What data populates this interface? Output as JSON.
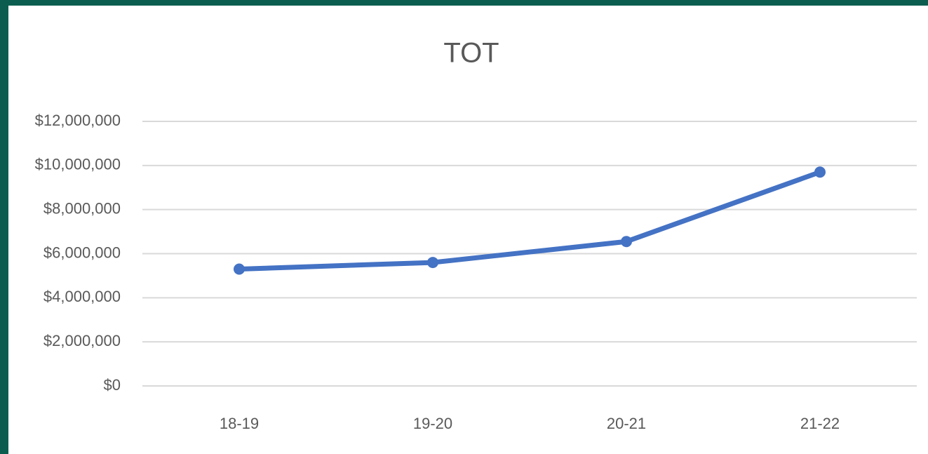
{
  "chart_data": {
    "type": "line",
    "title": "TOT",
    "categories": [
      "18-19",
      "19-20",
      "20-21",
      "21-22"
    ],
    "series": [
      {
        "name": "TOT",
        "color": "#4472c4",
        "values": [
          5300000,
          5600000,
          6550000,
          9700000
        ]
      }
    ],
    "ylim": [
      0,
      12000000
    ],
    "yticks": [
      {
        "value": 0,
        "label": "$0"
      },
      {
        "value": 2000000,
        "label": "$2,000,000"
      },
      {
        "value": 4000000,
        "label": "$4,000,000"
      },
      {
        "value": 6000000,
        "label": "$6,000,000"
      },
      {
        "value": 8000000,
        "label": "$8,000,000"
      },
      {
        "value": 10000000,
        "label": "$10,000,000"
      },
      {
        "value": 12000000,
        "label": "$12,000,000"
      }
    ],
    "grid": true
  }
}
